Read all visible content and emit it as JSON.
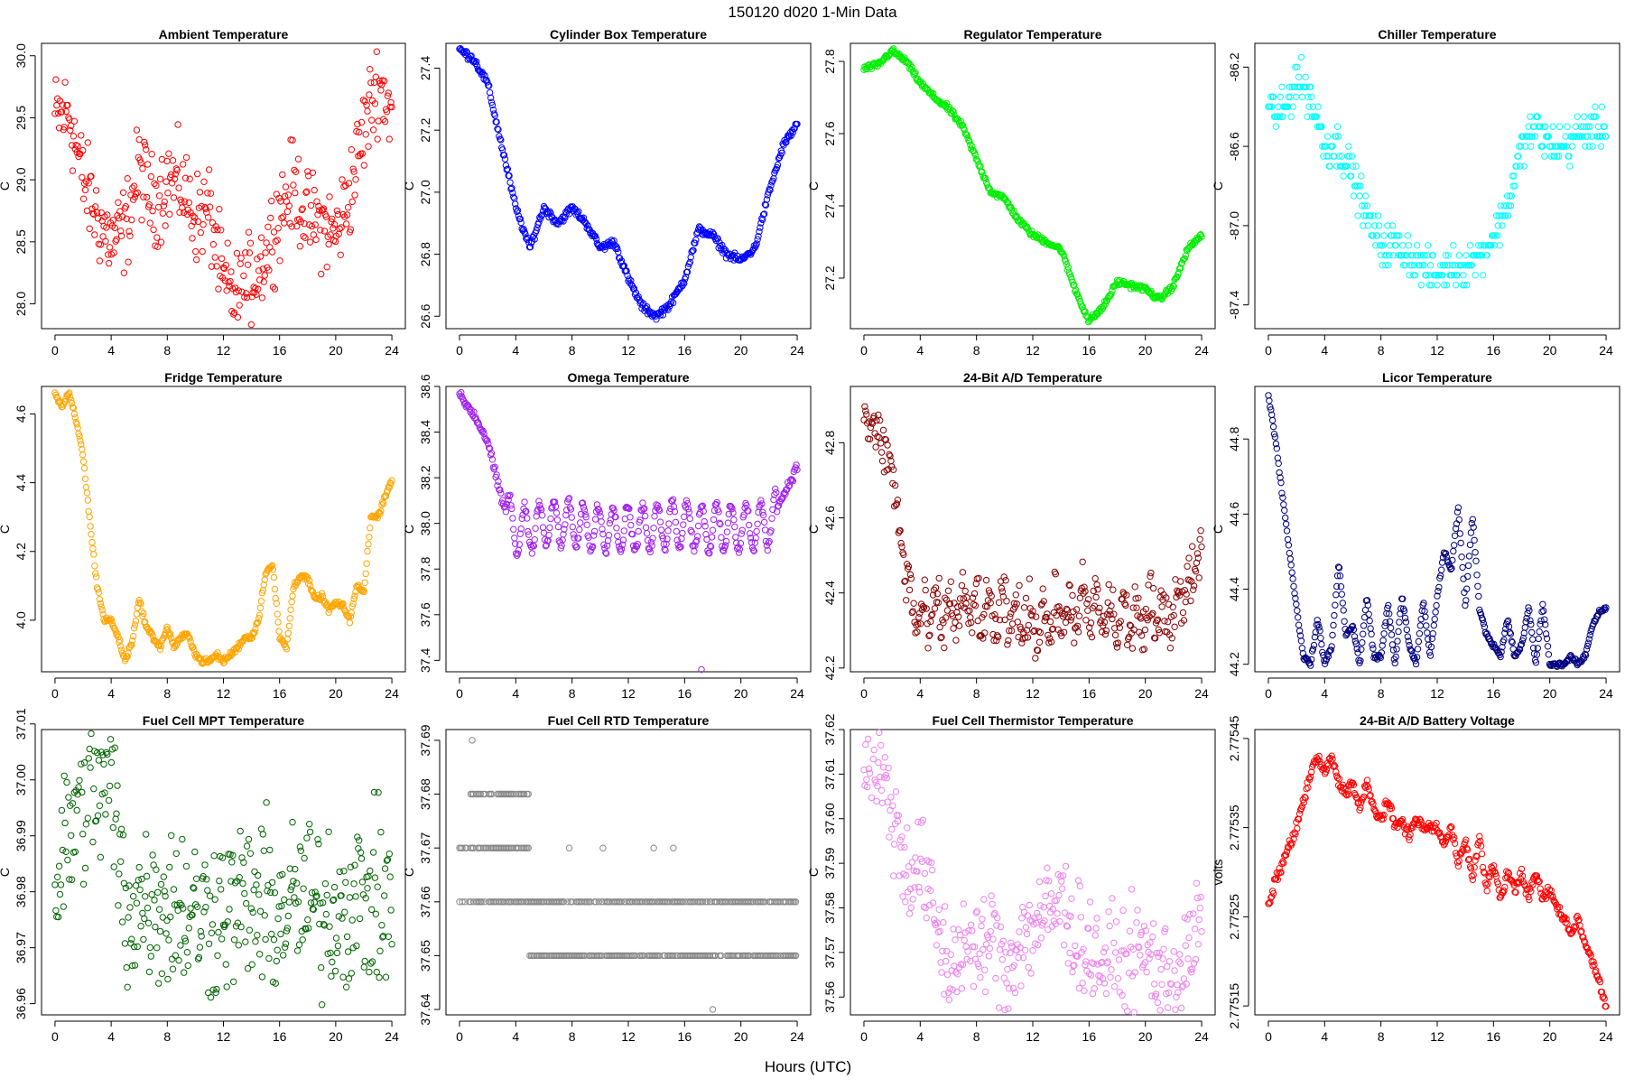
{
  "title": "150120    d020    1-Min Data",
  "xlabel": "Hours (UTC)",
  "chart_data": [
    {
      "type": "scatter",
      "title": "Ambient Temperature",
      "ylabel": "C",
      "color": "#ff0000",
      "ylim": [
        27.8,
        30.1
      ],
      "yticks": [
        "28.0",
        "28.5",
        "29.0",
        "29.5",
        "30.0"
      ],
      "ytick_values": [
        28.0,
        28.5,
        29.0,
        29.5,
        30.0
      ],
      "x": [
        0,
        1,
        2,
        3,
        4,
        5,
        6,
        7,
        8,
        9,
        10,
        11,
        12,
        13,
        14,
        15,
        16,
        17,
        18,
        19,
        20,
        21,
        22,
        23,
        24
      ],
      "y": [
        29.5,
        29.55,
        29.0,
        28.7,
        28.5,
        28.6,
        29.1,
        28.8,
        29.0,
        28.95,
        28.7,
        28.75,
        28.15,
        28.05,
        28.2,
        28.4,
        28.75,
        28.95,
        28.7,
        28.65,
        28.55,
        28.9,
        29.4,
        29.8,
        29.55
      ],
      "noise": 0.18
    },
    {
      "type": "scatter",
      "title": "Cylinder Box Temperature",
      "ylabel": "C",
      "color": "#0000ff",
      "ylim": [
        26.56,
        27.48
      ],
      "yticks": [
        "26.6",
        "26.8",
        "27.0",
        "27.2",
        "27.4"
      ],
      "ytick_values": [
        26.6,
        26.8,
        27.0,
        27.2,
        27.4
      ],
      "x": [
        0,
        1,
        2,
        3,
        4,
        5,
        6,
        7,
        8,
        9,
        10,
        11,
        12,
        13,
        14,
        15,
        16,
        17,
        18,
        19,
        20,
        21,
        22,
        23,
        24
      ],
      "y": [
        27.46,
        27.43,
        27.35,
        27.15,
        26.95,
        26.82,
        26.95,
        26.9,
        26.95,
        26.9,
        26.82,
        26.84,
        26.72,
        26.63,
        26.6,
        26.64,
        26.72,
        26.88,
        26.86,
        26.8,
        26.78,
        26.82,
        27.0,
        27.15,
        27.22
      ],
      "noise": 0.006
    },
    {
      "type": "scatter",
      "title": "Regulator Temperature",
      "ylabel": "C",
      "color": "#00ee00",
      "ylim": [
        27.06,
        27.85
      ],
      "yticks": [
        "27.2",
        "27.4",
        "27.6",
        "27.8"
      ],
      "ytick_values": [
        27.2,
        27.4,
        27.6,
        27.8
      ],
      "x": [
        0,
        1,
        2,
        3,
        4,
        5,
        6,
        7,
        8,
        9,
        10,
        11,
        12,
        13,
        14,
        15,
        16,
        17,
        18,
        19,
        20,
        21,
        22,
        23,
        24
      ],
      "y": [
        27.78,
        27.79,
        27.83,
        27.8,
        27.74,
        27.7,
        27.67,
        27.62,
        27.53,
        27.44,
        27.42,
        27.36,
        27.32,
        27.3,
        27.28,
        27.17,
        27.08,
        27.12,
        27.19,
        27.18,
        27.17,
        27.14,
        27.18,
        27.28,
        27.32
      ],
      "noise": 0.004
    },
    {
      "type": "scatter",
      "title": "Chiller Temperature",
      "ylabel": "C",
      "color": "#00ffff",
      "ylim": [
        -87.52,
        -86.08
      ],
      "yticks": [
        "-87.4",
        "-87.0",
        "-86.6",
        "-86.2"
      ],
      "ytick_values": [
        -87.4,
        -87.0,
        -86.6,
        -86.2
      ],
      "x": [
        0,
        1,
        2,
        3,
        4,
        5,
        6,
        7,
        8,
        9,
        10,
        11,
        12,
        13,
        14,
        15,
        16,
        17,
        18,
        19,
        20,
        21,
        22,
        23,
        24
      ],
      "y": [
        -86.4,
        -86.45,
        -86.25,
        -86.35,
        -86.6,
        -86.6,
        -86.75,
        -86.95,
        -87.1,
        -87.1,
        -87.15,
        -87.2,
        -87.25,
        -87.2,
        -87.2,
        -87.15,
        -87.05,
        -86.9,
        -86.6,
        -86.5,
        -86.6,
        -86.6,
        -86.55,
        -86.5,
        -86.5
      ],
      "noise": 0.05,
      "quantize": 0.05
    },
    {
      "type": "scatter",
      "title": "Fridge Temperature",
      "ylabel": "C",
      "color": "#ffa500",
      "ylim": [
        3.85,
        4.68
      ],
      "yticks": [
        "4.0",
        "4.2",
        "4.4",
        "4.6"
      ],
      "ytick_values": [
        4.0,
        4.2,
        4.4,
        4.6
      ],
      "x": [
        0,
        0.5,
        1,
        1.5,
        2,
        2.5,
        3,
        3.5,
        4,
        4.5,
        5,
        5.5,
        6,
        6.5,
        7,
        7.5,
        8,
        8.5,
        9,
        9.5,
        10,
        10.5,
        11,
        11.5,
        12,
        12.5,
        13,
        13.5,
        14,
        14.5,
        15,
        15.5,
        16,
        16.5,
        17,
        17.5,
        18,
        18.5,
        19,
        19.5,
        20,
        20.5,
        21,
        21.5,
        22,
        22.5,
        23,
        23.5,
        24
      ],
      "y": [
        4.66,
        4.62,
        4.66,
        4.58,
        4.48,
        4.28,
        4.1,
        4.0,
        4.0,
        3.95,
        3.88,
        3.94,
        4.06,
        3.98,
        3.95,
        3.92,
        3.98,
        3.92,
        3.95,
        3.96,
        3.9,
        3.88,
        3.88,
        3.9,
        3.88,
        3.9,
        3.92,
        3.95,
        3.95,
        4.0,
        4.14,
        4.16,
        3.95,
        3.92,
        4.1,
        4.13,
        4.12,
        4.06,
        4.07,
        4.03,
        4.05,
        4.04,
        4.0,
        4.1,
        4.08,
        4.3,
        4.3,
        4.36,
        4.41
      ],
      "noise": 0.004
    },
    {
      "type": "scatter",
      "title": "Omega Temperature",
      "ylabel": "C",
      "color": "#a020f0",
      "ylim": [
        37.35,
        38.6
      ],
      "yticks": [
        "37.4",
        "37.6",
        "37.8",
        "38.0",
        "38.2",
        "38.4",
        "38.6"
      ],
      "ytick_values": [
        37.4,
        37.6,
        37.8,
        38.0,
        38.2,
        38.4,
        38.6
      ],
      "x": [
        0,
        1,
        2,
        3,
        4,
        5,
        6,
        7,
        8,
        9,
        10,
        11,
        12,
        13,
        14,
        15,
        16,
        17,
        18,
        19,
        20,
        21,
        22,
        23,
        24
      ],
      "y": [
        38.56,
        38.48,
        38.36,
        38.1,
        37.96,
        37.98,
        38.0,
        38.0,
        38.0,
        37.98,
        37.98,
        37.98,
        37.98,
        37.98,
        37.98,
        38.0,
        38.0,
        37.98,
        37.98,
        37.98,
        37.98,
        37.98,
        38.0,
        38.12,
        38.25
      ],
      "wave": {
        "amp": 0.1,
        "period": 1.05,
        "start": 3.3,
        "end": 22.5
      },
      "noise": 0.01,
      "outlier": {
        "x": 17.2,
        "y": 37.36
      }
    },
    {
      "type": "scatter",
      "title": "24-Bit A/D Temperature",
      "ylabel": "C",
      "color": "#8b0000",
      "ylim": [
        42.19,
        42.95
      ],
      "yticks": [
        "42.2",
        "42.4",
        "42.6",
        "42.8"
      ],
      "ytick_values": [
        42.2,
        42.4,
        42.6,
        42.8
      ],
      "x": [
        0,
        1,
        2,
        3,
        4,
        5,
        6,
        7,
        8,
        9,
        10,
        11,
        12,
        13,
        14,
        15,
        16,
        17,
        18,
        19,
        20,
        21,
        22,
        23,
        24
      ],
      "y": [
        42.87,
        42.82,
        42.73,
        42.42,
        42.32,
        42.34,
        42.35,
        42.36,
        42.35,
        42.34,
        42.34,
        42.33,
        42.33,
        42.33,
        42.34,
        42.35,
        42.36,
        42.34,
        42.33,
        42.33,
        42.33,
        42.34,
        42.36,
        42.42,
        42.52
      ],
      "wave": {
        "amp": 0.05,
        "period": 0.95,
        "start": 3,
        "end": 23
      },
      "noise": 0.035
    },
    {
      "type": "scatter",
      "title": "Licor Temperature",
      "ylabel": "C",
      "color": "#000080",
      "ylim": [
        44.18,
        44.94
      ],
      "yticks": [
        "44.2",
        "44.4",
        "44.6",
        "44.8"
      ],
      "ytick_values": [
        44.2,
        44.4,
        44.6,
        44.8
      ],
      "x": [
        0,
        0.5,
        1,
        1.5,
        2,
        2.5,
        3,
        3.5,
        4,
        4.5,
        5,
        5.5,
        6,
        6.5,
        7,
        7.5,
        8,
        8.5,
        9,
        9.5,
        10,
        10.5,
        11,
        11.5,
        12,
        12.5,
        13,
        13.5,
        14,
        14.5,
        15,
        15.5,
        16,
        16.5,
        17,
        17.5,
        18,
        18.5,
        19,
        19.5,
        20,
        20.5,
        21,
        21.5,
        22,
        22.5,
        23,
        23.5,
        24
      ],
      "y": [
        44.92,
        44.8,
        44.65,
        44.5,
        44.35,
        44.22,
        44.2,
        44.32,
        44.2,
        44.25,
        44.47,
        44.28,
        44.3,
        44.2,
        44.38,
        44.22,
        44.22,
        44.36,
        44.2,
        44.38,
        44.25,
        44.2,
        44.37,
        44.22,
        44.38,
        44.5,
        44.45,
        44.62,
        44.35,
        44.6,
        44.35,
        44.28,
        44.25,
        44.22,
        44.32,
        44.22,
        44.25,
        44.35,
        44.2,
        44.36,
        44.2,
        44.2,
        44.2,
        44.22,
        44.2,
        44.22,
        44.3,
        44.34,
        44.35
      ],
      "noise": 0.003
    },
    {
      "type": "scatter",
      "title": "Fuel Cell MPT Temperature",
      "ylabel": "C",
      "color": "#006400",
      "ylim": [
        36.958,
        37.009
      ],
      "yticks": [
        "36.96",
        "36.97",
        "36.98",
        "36.99",
        "37.00",
        "37.01"
      ],
      "ytick_values": [
        36.96,
        36.97,
        36.98,
        36.99,
        37.0,
        37.01
      ],
      "x": [
        0,
        1,
        2,
        3,
        4,
        5,
        6,
        7,
        8,
        9,
        10,
        11,
        12,
        13,
        14,
        15,
        16,
        17,
        18,
        19,
        20,
        21,
        22,
        23,
        24
      ],
      "y": [
        36.98,
        36.99,
        36.998,
        36.998,
        37.0,
        36.976,
        36.978,
        36.979,
        36.978,
        36.977,
        36.976,
        36.976,
        36.977,
        36.977,
        36.978,
        36.977,
        36.976,
        36.978,
        36.978,
        36.977,
        36.977,
        36.978,
        36.979,
        36.978,
        36.978
      ],
      "noise": 0.0075
    },
    {
      "type": "scatter",
      "title": "Fuel Cell RTD Temperature",
      "ylabel": "C",
      "color": "#888888",
      "ylim": [
        37.639,
        37.692
      ],
      "yticks": [
        "37.64",
        "37.65",
        "37.66",
        "37.67",
        "37.68",
        "37.69"
      ],
      "ytick_values": [
        37.64,
        37.65,
        37.66,
        37.67,
        37.68,
        37.69
      ],
      "levels": [
        {
          "v": 37.68,
          "from": 0.7,
          "to": 5.0
        },
        {
          "v": 37.67,
          "from": 0,
          "to": 5.0
        },
        {
          "v": 37.66,
          "from": 0,
          "to": 24
        },
        {
          "v": 37.65,
          "from": 5.0,
          "to": 24
        }
      ],
      "outliers": [
        {
          "x": 0.9,
          "y": 37.69
        },
        {
          "x": 18.0,
          "y": 37.64
        },
        {
          "x": 7.8,
          "y": 37.67
        },
        {
          "x": 10.2,
          "y": 37.67
        },
        {
          "x": 13.8,
          "y": 37.67
        },
        {
          "x": 15.2,
          "y": 37.67
        }
      ]
    },
    {
      "type": "scatter",
      "title": "Fuel Cell Thermistor Temperature",
      "ylabel": "C",
      "color": "#ee82ee",
      "ylim": [
        37.556,
        37.62
      ],
      "yticks": [
        "37.56",
        "37.57",
        "37.58",
        "37.59",
        "37.60",
        "37.61",
        "37.62"
      ],
      "ytick_values": [
        37.56,
        37.57,
        37.58,
        37.59,
        37.6,
        37.61,
        37.62
      ],
      "x": [
        0,
        1,
        2,
        3,
        4,
        5,
        6,
        7,
        8,
        9,
        10,
        11,
        12,
        13,
        14,
        15,
        16,
        17,
        18,
        19,
        20,
        21,
        22,
        23,
        24
      ],
      "y": [
        37.614,
        37.612,
        37.602,
        37.588,
        37.59,
        37.578,
        37.566,
        37.572,
        37.568,
        37.574,
        37.566,
        37.572,
        37.576,
        37.578,
        37.582,
        37.574,
        37.57,
        37.568,
        37.565,
        37.568,
        37.57,
        37.566,
        37.564,
        37.568,
        37.578
      ],
      "noise": 0.006
    },
    {
      "type": "scatter",
      "title": "24-Bit A/D Battery Voltage",
      "ylabel": "volts",
      "color": "#ff0000",
      "ylim": [
        2.77514,
        2.77546
      ],
      "yticks": [
        "2.77515",
        "2.77525",
        "2.77535",
        "2.77545"
      ],
      "ytick_values": [
        2.77515,
        2.77525,
        2.77535,
        2.77545
      ],
      "x": [
        0,
        0.5,
        1,
        1.5,
        2,
        2.5,
        3,
        3.5,
        4,
        4.5,
        5,
        5.5,
        6,
        6.5,
        7,
        7.5,
        8,
        8.5,
        9,
        9.5,
        10,
        10.5,
        11,
        11.5,
        12,
        12.5,
        13,
        13.5,
        14,
        14.5,
        15,
        15.5,
        16,
        16.5,
        17,
        17.5,
        18,
        18.5,
        19,
        19.5,
        20,
        20.5,
        21,
        21.5,
        22,
        22.5,
        23,
        23.5,
        24
      ],
      "y": [
        2.77526,
        2.77529,
        2.77531,
        2.77533,
        2.77535,
        2.77538,
        2.77541,
        2.77543,
        2.77541,
        2.77543,
        2.7754,
        2.77539,
        2.7754,
        2.77537,
        2.7754,
        2.77537,
        2.77536,
        2.77538,
        2.77535,
        2.77536,
        2.77534,
        2.77536,
        2.77535,
        2.77535,
        2.77535,
        2.77533,
        2.77535,
        2.77531,
        2.77534,
        2.77529,
        2.77534,
        2.77528,
        2.77531,
        2.77527,
        2.7753,
        2.77528,
        2.7753,
        2.77527,
        2.7753,
        2.77527,
        2.77528,
        2.77526,
        2.77525,
        2.77523,
        2.77525,
        2.77522,
        2.7752,
        2.77518,
        2.77515
      ],
      "noise": 3e-06
    }
  ],
  "xticks": [
    "0",
    "4",
    "8",
    "12",
    "16",
    "20",
    "24"
  ]
}
